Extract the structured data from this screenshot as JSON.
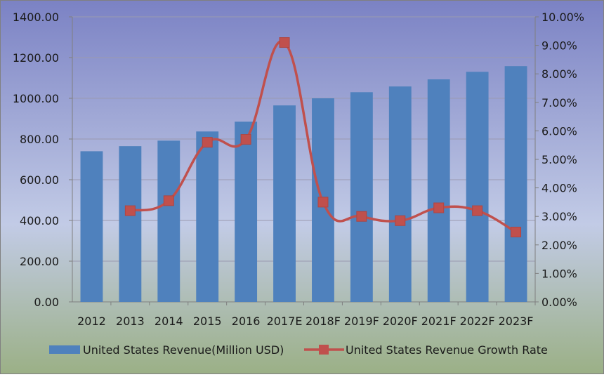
{
  "chart_data": {
    "type": "bar",
    "categories": [
      "2012",
      "2013",
      "2014",
      "2015",
      "2016",
      "2017E",
      "2018F",
      "2019F",
      "2020F",
      "2021F",
      "2022F",
      "2023F"
    ],
    "series": [
      {
        "name": "United States Revenue(Million USD)",
        "type": "bar",
        "axis": "left",
        "color": "#4f81bd",
        "values": [
          740,
          765,
          792,
          837,
          885,
          965,
          1000,
          1030,
          1058,
          1093,
          1130,
          1158
        ]
      },
      {
        "name": "United States Revenue Growth Rate",
        "type": "line",
        "axis": "right",
        "color": "#c0504d",
        "values": [
          null,
          0.032,
          0.0355,
          0.056,
          0.057,
          0.091,
          0.035,
          0.03,
          0.0285,
          0.033,
          0.032,
          0.0245
        ]
      }
    ],
    "y_left": {
      "range": [
        0,
        1400
      ],
      "ticks": [
        0,
        200,
        400,
        600,
        800,
        1000,
        1200,
        1400
      ],
      "tick_labels": [
        "0.00",
        "200.00",
        "400.00",
        "600.00",
        "800.00",
        "1000.00",
        "1200.00",
        "1400.00"
      ]
    },
    "y_right": {
      "range": [
        0,
        0.1
      ],
      "ticks": [
        0,
        0.01,
        0.02,
        0.03,
        0.04,
        0.05,
        0.06,
        0.07,
        0.08,
        0.09,
        0.1
      ],
      "tick_labels": [
        "0.00%",
        "1.00%",
        "2.00%",
        "3.00%",
        "4.00%",
        "5.00%",
        "6.00%",
        "7.00%",
        "8.00%",
        "9.00%",
        "10.00%"
      ]
    },
    "grid": true,
    "legend": "bottom",
    "background_gradient": [
      "#7b82c4",
      "#c2cbe6",
      "#9bb086"
    ]
  }
}
